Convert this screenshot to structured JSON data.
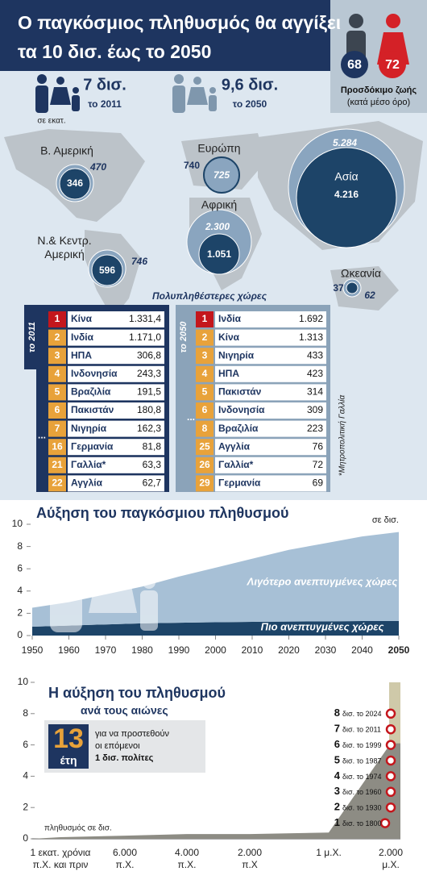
{
  "header": {
    "title_lines": [
      "Ο παγκόσμιος πληθυσμός θα αγγίξει",
      "τα 10 δισ. έως το 2050"
    ]
  },
  "life_expectancy": {
    "men": "68",
    "women": "72",
    "label": "Προσδόκιμο ζωής",
    "note": "(κατά μέσο όρο)"
  },
  "totals": [
    {
      "value": "7 δισ.",
      "year": "το 2011"
    },
    {
      "value": "9,6 δισ.",
      "year": "το 2050"
    }
  ],
  "unit_note": "σε εκατ.",
  "regions": [
    {
      "name": "Β. Αμερική",
      "y2011": "346",
      "y2050": "470"
    },
    {
      "name": "Ευρώπη",
      "y2011": "740",
      "y2050": "725"
    },
    {
      "name": "Ασία",
      "y2011": "4.216",
      "y2050": "5.284"
    },
    {
      "name": "Αφρική",
      "y2011": "1.051",
      "y2050": "2.300"
    },
    {
      "name": "Ν.& Κεντρ.\nΑμερική",
      "y2011": "596",
      "y2050": "746"
    },
    {
      "name": "Ωκεανία",
      "y2011": "37",
      "y2050": "62"
    }
  ],
  "rankings": {
    "title": "Πολυπληθέστερες χώρες",
    "footnote": "*Μητροπολιτική Γαλλία",
    "tables": [
      {
        "label": "το 2011",
        "ellipsis": "...",
        "rows": [
          [
            "1",
            "Κίνα",
            "1.331,4"
          ],
          [
            "2",
            "Ινδία",
            "1.171,0"
          ],
          [
            "3",
            "ΗΠΑ",
            "306,8"
          ],
          [
            "4",
            "Ινδονησία",
            "243,3"
          ],
          [
            "5",
            "Βραζιλία",
            "191,5"
          ],
          [
            "6",
            "Πακιστάν",
            "180,8"
          ],
          [
            "7",
            "Νιγηρία",
            "162,3"
          ],
          [
            "16",
            "Γερμανία",
            "81,8"
          ],
          [
            "21",
            "Γαλλία*",
            "63,3"
          ],
          [
            "22",
            "Αγγλία",
            "62,7"
          ]
        ]
      },
      {
        "label": "το 2050",
        "ellipsis": "...",
        "rows": [
          [
            "1",
            "Ινδία",
            "1.692"
          ],
          [
            "2",
            "Κίνα",
            "1.313"
          ],
          [
            "3",
            "Νιγηρία",
            "433"
          ],
          [
            "4",
            "ΗΠΑ",
            "423"
          ],
          [
            "5",
            "Πακιστάν",
            "314"
          ],
          [
            "6",
            "Ινδονησία",
            "309"
          ],
          [
            "8",
            "Βραζιλία",
            "223"
          ],
          [
            "25",
            "Αγγλία",
            "76"
          ],
          [
            "26",
            "Γαλλία*",
            "72"
          ],
          [
            "29",
            "Γερμανία",
            "69"
          ]
        ]
      }
    ]
  },
  "chart_data": [
    {
      "type": "area",
      "title": "Αύξηση του παγκόσμιου πληθυσμού",
      "unit": "σε δισ.",
      "x": [
        1950,
        1960,
        1970,
        1980,
        1990,
        2000,
        2010,
        2020,
        2030,
        2040,
        2050
      ],
      "series": [
        {
          "name": "Πιο ανεπτυγμένες χώρες",
          "color": "#1d4468",
          "values": [
            0.8,
            0.9,
            1.0,
            1.1,
            1.15,
            1.2,
            1.23,
            1.26,
            1.28,
            1.3,
            1.3
          ]
        },
        {
          "name": "Λιγότερο ανεπτυγμένες χώρες",
          "color": "#a7c0d6",
          "values": [
            1.7,
            2.1,
            2.7,
            3.3,
            4.15,
            4.9,
            5.67,
            6.44,
            7.02,
            7.6,
            8.0
          ]
        }
      ],
      "xlim": [
        1950,
        2050
      ],
      "xticks": [
        1950,
        1960,
        1970,
        1980,
        1990,
        2000,
        2010,
        2020,
        2030,
        2040,
        2050
      ],
      "ylim": [
        0,
        10
      ],
      "yticks": [
        0,
        2,
        4,
        6,
        8,
        10
      ]
    },
    {
      "type": "area",
      "title": "Η αύξηση του πληθυσμού",
      "subtitle": "ανά τους αιώνες",
      "color": "#8d8c84",
      "categories": [
        "1 εκατ. χρόνια\nπ.Χ. και πριν",
        "6.000\nπ.Χ.",
        "4.000\nπ.Χ.",
        "2.000\nπ.Χ",
        "1 μ.Χ.",
        "2.000\nμ.Χ."
      ],
      "values": [
        0.1,
        0.2,
        0.3,
        0.3,
        0.4,
        6.1
      ],
      "area_label": "πληθυσμός σε δισ.",
      "ylim": [
        0,
        10
      ],
      "yticks": [
        0,
        2,
        4,
        6,
        8,
        10
      ],
      "milestones": [
        {
          "value": 1,
          "label": "δισ. το 1800"
        },
        {
          "value": 2,
          "label": "δισ. το 1930"
        },
        {
          "value": 3,
          "label": "δισ. το 1960"
        },
        {
          "value": 4,
          "label": "δισ. το 1974"
        },
        {
          "value": 5,
          "label": "δισ. το 1987"
        },
        {
          "value": 6,
          "label": "δισ. το 1999"
        },
        {
          "value": 7,
          "label": "δισ. το 2011"
        },
        {
          "value": 8,
          "label": "δισ. το 2024"
        }
      ],
      "callout": {
        "number": "13",
        "unit": "έτη",
        "text": [
          "για να προστεθούν",
          "οι επόμενοι",
          "1 δισ. πολίτες"
        ]
      }
    }
  ]
}
